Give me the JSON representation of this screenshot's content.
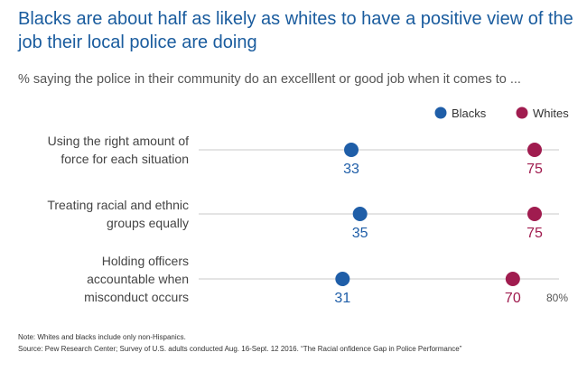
{
  "title": "Blacks are about half as likely as whites to have a positive view of the job their local police are doing",
  "subtitle": "% saying the police in their community do an excelllent or good job when it comes to ...",
  "note": "Note: Whites and blacks include only non-Hispanics.",
  "source": "Source: Pew Research Center; Survey of U.S. adults conducted Aug. 16-Sept. 12 2016. “The Racial onfidence Gap in Police Performance”",
  "chart_data": {
    "type": "dot",
    "title": "Blacks are about half as likely as whites to have a positive view of the job their local police are doing",
    "subtitle": "% saying the police in their community do an excelllent or good job when it comes to ...",
    "categories": [
      [
        "Using the right amount of",
        "force for each situation"
      ],
      [
        "Treating racial and ethnic",
        "groups equally"
      ],
      [
        "Holding officers",
        "accountable when",
        "misconduct occurs"
      ]
    ],
    "series": [
      {
        "name": "Blacks",
        "color": "#1f5ea8",
        "values": [
          33,
          35,
          31
        ]
      },
      {
        "name": "Whites",
        "color": "#a01c4f",
        "values": [
          75,
          75,
          70
        ]
      }
    ],
    "xlim": [
      0,
      80
    ],
    "axis_end_label": "80%",
    "legend_position": "top-right",
    "grid": false
  }
}
